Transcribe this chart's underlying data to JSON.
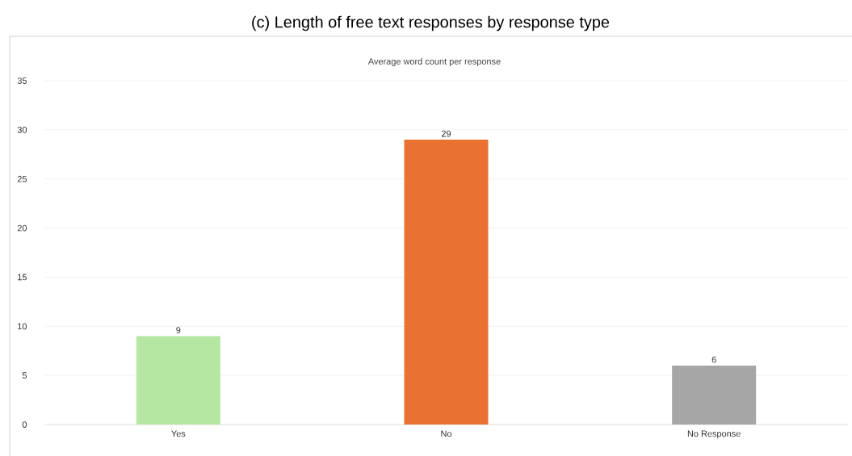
{
  "chart_data": {
    "type": "bar",
    "title": "(c) Length of free text responses by response type",
    "subtitle": "Average word count per response",
    "categories": [
      "Yes",
      "No",
      "No Response"
    ],
    "values": [
      9,
      29,
      6
    ],
    "colors": [
      "#b5e6a2",
      "#e97132",
      "#a6a6a6"
    ],
    "ylim": [
      0,
      35
    ],
    "yticks": [
      0,
      5,
      10,
      15,
      20,
      25,
      30,
      35
    ],
    "grid": "y",
    "data_labels": true
  }
}
